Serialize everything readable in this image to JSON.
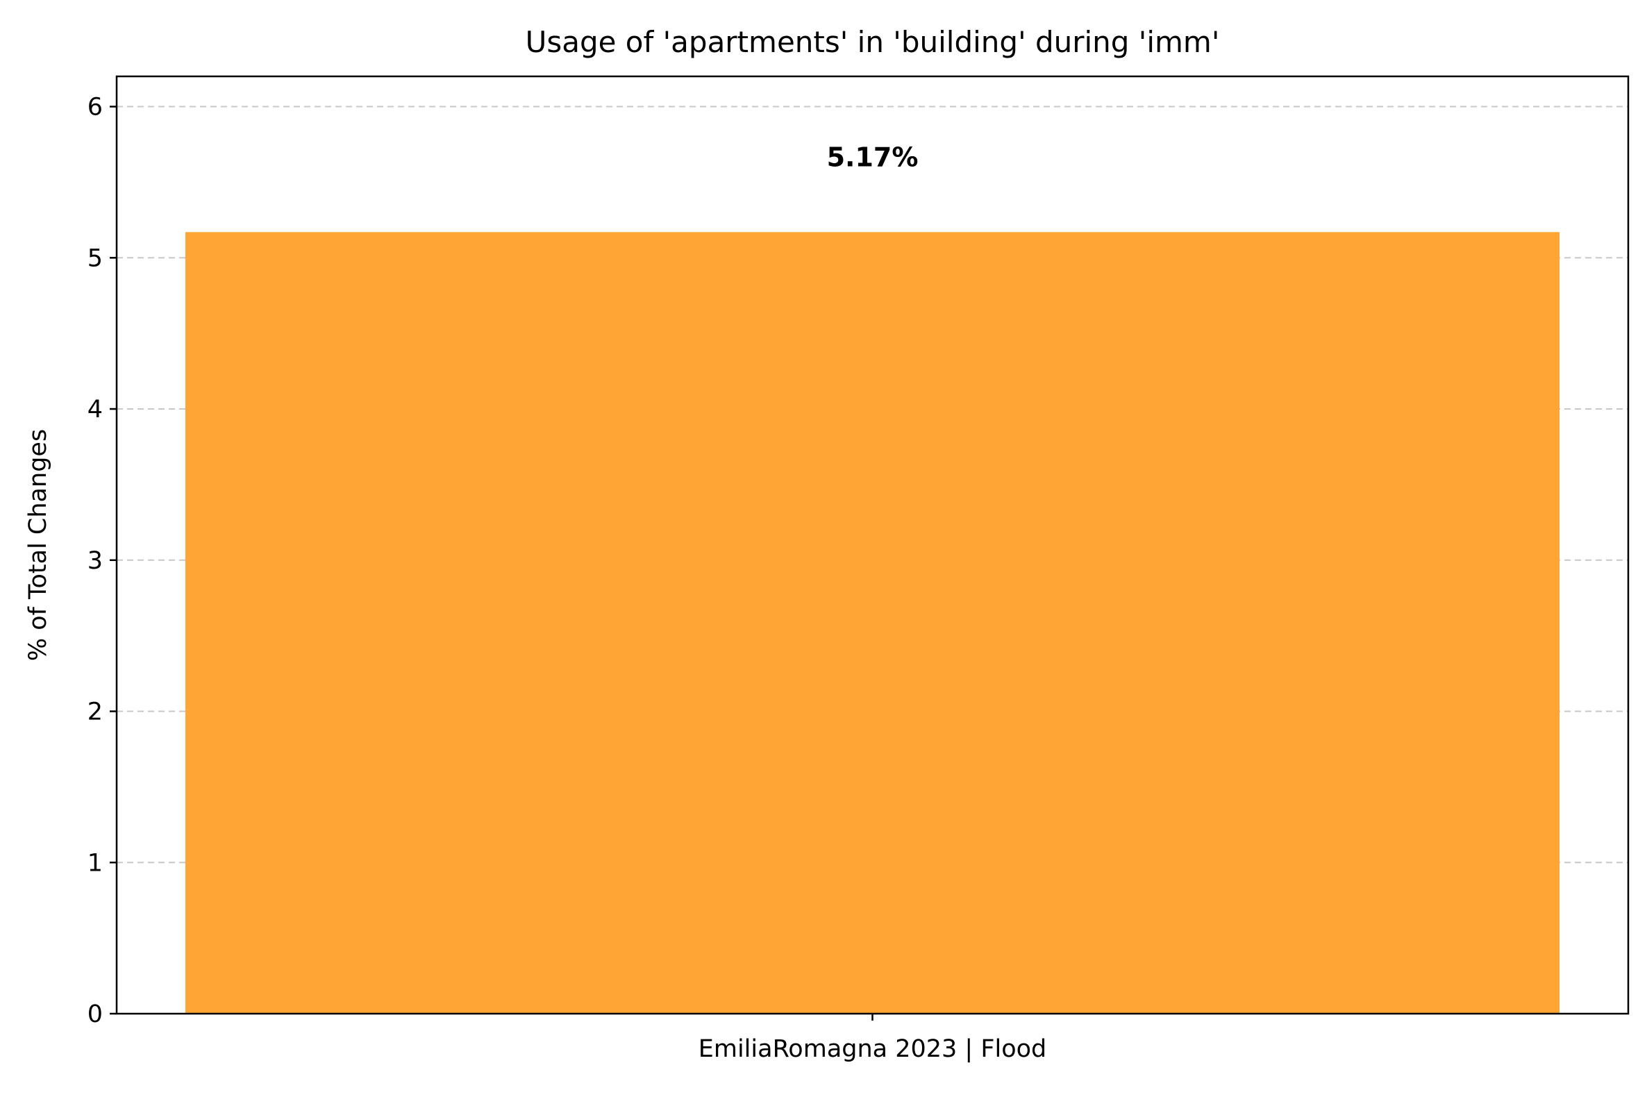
{
  "chart_data": {
    "type": "bar",
    "title": "Usage of 'apartments' in 'building' during 'imm'",
    "xlabel": "",
    "ylabel": "% of Total Changes",
    "categories": [
      "EmiliaRomagna 2023 | Flood"
    ],
    "values": [
      5.17
    ],
    "data_labels": [
      "5.17%"
    ],
    "ylim": [
      0,
      6.2
    ],
    "yticks": [
      0,
      1,
      2,
      3,
      4,
      5,
      6
    ],
    "ytick_labels": [
      "0",
      "1",
      "2",
      "3",
      "4",
      "5",
      "6"
    ],
    "grid": {
      "y": true,
      "style": "dashed",
      "color": "#c8c8c8"
    },
    "bar_color": "#ffa535"
  }
}
